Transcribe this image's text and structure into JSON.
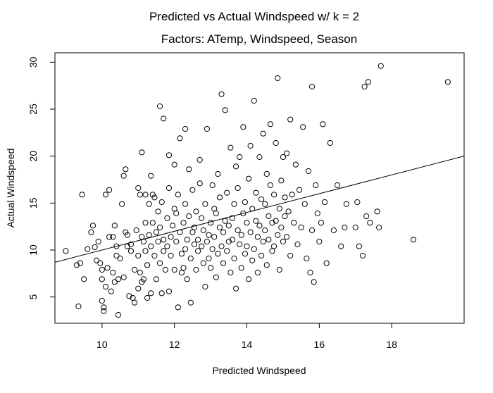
{
  "chart_data": {
    "type": "scatter",
    "title": "Predicted vs Actual Windspeed w/ k = 2",
    "subtitle": "Factors: ATemp, Windspeed, Season",
    "xlabel": "Predicted Windspeed",
    "ylabel": "Actual Windspeed",
    "xlim": [
      8.7,
      20.0
    ],
    "ylim": [
      2.2,
      31.0
    ],
    "x_ticks": [
      10,
      12,
      14,
      16,
      18
    ],
    "y_ticks": [
      5,
      10,
      15,
      20,
      25,
      30
    ],
    "grid": false,
    "legend": "none",
    "regression_line": {
      "x": [
        8.7,
        20.0
      ],
      "y": [
        8.7,
        20.0
      ]
    },
    "points": [
      [
        9.0,
        9.9
      ],
      [
        9.3,
        8.4
      ],
      [
        9.35,
        4.0
      ],
      [
        9.4,
        8.6
      ],
      [
        9.45,
        15.9
      ],
      [
        9.5,
        6.9
      ],
      [
        9.6,
        10.1
      ],
      [
        9.7,
        11.9
      ],
      [
        9.75,
        12.6
      ],
      [
        9.8,
        10.3
      ],
      [
        9.85,
        8.9
      ],
      [
        9.9,
        10.9
      ],
      [
        9.95,
        8.6
      ],
      [
        10.0,
        7.9
      ],
      [
        10.0,
        6.9
      ],
      [
        10.0,
        4.6
      ],
      [
        10.05,
        3.9
      ],
      [
        10.05,
        3.5
      ],
      [
        10.1,
        15.9
      ],
      [
        10.1,
        6.1
      ],
      [
        10.15,
        8.1
      ],
      [
        10.2,
        11.4
      ],
      [
        10.2,
        16.4
      ],
      [
        10.25,
        5.6
      ],
      [
        10.3,
        11.4
      ],
      [
        10.3,
        7.6
      ],
      [
        10.35,
        6.6
      ],
      [
        10.35,
        12.6
      ],
      [
        10.4,
        10.4
      ],
      [
        10.4,
        9.4
      ],
      [
        10.45,
        3.1
      ],
      [
        10.45,
        6.9
      ],
      [
        10.5,
        9.1
      ],
      [
        10.55,
        14.9
      ],
      [
        10.6,
        17.9
      ],
      [
        10.6,
        7.1
      ],
      [
        10.65,
        18.6
      ],
      [
        10.65,
        11.9
      ],
      [
        10.7,
        10.4
      ],
      [
        10.7,
        11.6
      ],
      [
        10.75,
        5.1
      ],
      [
        10.8,
        9.9
      ],
      [
        10.8,
        10.6
      ],
      [
        10.85,
        4.9
      ],
      [
        10.9,
        4.4
      ],
      [
        10.9,
        7.9
      ],
      [
        10.95,
        12.1
      ],
      [
        11.0,
        16.6
      ],
      [
        11.0,
        5.9
      ],
      [
        11.0,
        9.4
      ],
      [
        11.05,
        7.6
      ],
      [
        11.05,
        15.9
      ],
      [
        11.1,
        11.4
      ],
      [
        11.1,
        6.6
      ],
      [
        11.1,
        20.4
      ],
      [
        11.15,
        10.9
      ],
      [
        11.15,
        6.9
      ],
      [
        11.2,
        12.9
      ],
      [
        11.2,
        15.9
      ],
      [
        11.2,
        9.9
      ],
      [
        11.25,
        4.9
      ],
      [
        11.25,
        8.4
      ],
      [
        11.3,
        11.6
      ],
      [
        11.3,
        14.9
      ],
      [
        11.35,
        10.4
      ],
      [
        11.35,
        5.4
      ],
      [
        11.35,
        17.9
      ],
      [
        11.4,
        15.9
      ],
      [
        11.4,
        12.9
      ],
      [
        11.45,
        9.4
      ],
      [
        11.45,
        15.6
      ],
      [
        11.5,
        11.9
      ],
      [
        11.5,
        6.9
      ],
      [
        11.55,
        10.9
      ],
      [
        11.55,
        14.1
      ],
      [
        11.6,
        12.4
      ],
      [
        11.6,
        8.6
      ],
      [
        11.6,
        25.3
      ],
      [
        11.65,
        5.4
      ],
      [
        11.65,
        15.1
      ],
      [
        11.7,
        24.0
      ],
      [
        11.7,
        9.9
      ],
      [
        11.7,
        11.1
      ],
      [
        11.75,
        7.9
      ],
      [
        11.8,
        13.4
      ],
      [
        11.8,
        10.4
      ],
      [
        11.85,
        16.6
      ],
      [
        11.85,
        20.1
      ],
      [
        11.85,
        5.6
      ],
      [
        11.9,
        11.4
      ],
      [
        11.9,
        9.4
      ],
      [
        11.95,
        12.6
      ],
      [
        12.0,
        19.1
      ],
      [
        12.0,
        14.4
      ],
      [
        12.0,
        7.9
      ],
      [
        12.05,
        10.9
      ],
      [
        12.05,
        13.9
      ],
      [
        12.1,
        15.9
      ],
      [
        12.1,
        3.9
      ],
      [
        12.15,
        11.9
      ],
      [
        12.15,
        21.9
      ],
      [
        12.2,
        9.6
      ],
      [
        12.2,
        7.6
      ],
      [
        12.25,
        12.9
      ],
      [
        12.25,
        8.1
      ],
      [
        12.3,
        22.9
      ],
      [
        12.3,
        14.9
      ],
      [
        12.3,
        10.1
      ],
      [
        12.35,
        11.1
      ],
      [
        12.35,
        6.9
      ],
      [
        12.4,
        13.6
      ],
      [
        12.4,
        18.6
      ],
      [
        12.45,
        9.1
      ],
      [
        12.45,
        4.4
      ],
      [
        12.5,
        11.9
      ],
      [
        12.5,
        16.4
      ],
      [
        12.55,
        10.6
      ],
      [
        12.55,
        12.4
      ],
      [
        12.6,
        7.9
      ],
      [
        12.6,
        14.1
      ],
      [
        12.65,
        9.9
      ],
      [
        12.65,
        11.1
      ],
      [
        12.7,
        17.1
      ],
      [
        12.7,
        19.6
      ],
      [
        12.75,
        10.4
      ],
      [
        12.75,
        13.4
      ],
      [
        12.8,
        8.6
      ],
      [
        12.8,
        12.1
      ],
      [
        12.85,
        6.1
      ],
      [
        12.85,
        14.9
      ],
      [
        12.9,
        10.9
      ],
      [
        12.9,
        22.9
      ],
      [
        12.95,
        11.6
      ],
      [
        12.95,
        9.1
      ],
      [
        13.0,
        12.9
      ],
      [
        13.0,
        8.1
      ],
      [
        13.05,
        16.9
      ],
      [
        13.05,
        10.1
      ],
      [
        13.1,
        14.4
      ],
      [
        13.1,
        11.4
      ],
      [
        13.15,
        7.1
      ],
      [
        13.15,
        13.9
      ],
      [
        13.2,
        9.6
      ],
      [
        13.2,
        18.1
      ],
      [
        13.25,
        12.4
      ],
      [
        13.25,
        15.6
      ],
      [
        13.3,
        10.4
      ],
      [
        13.3,
        26.6
      ],
      [
        13.35,
        8.6
      ],
      [
        13.35,
        11.9
      ],
      [
        13.4,
        13.1
      ],
      [
        13.4,
        24.9
      ],
      [
        13.45,
        9.9
      ],
      [
        13.45,
        16.1
      ],
      [
        13.5,
        10.9
      ],
      [
        13.5,
        12.6
      ],
      [
        13.55,
        7.6
      ],
      [
        13.55,
        20.9
      ],
      [
        13.6,
        13.4
      ],
      [
        13.6,
        11.1
      ],
      [
        13.65,
        14.9
      ],
      [
        13.65,
        9.1
      ],
      [
        13.7,
        18.9
      ],
      [
        13.7,
        5.9
      ],
      [
        13.75,
        12.1
      ],
      [
        13.75,
        16.6
      ],
      [
        13.8,
        10.6
      ],
      [
        13.8,
        19.9
      ],
      [
        13.85,
        11.6
      ],
      [
        13.85,
        8.1
      ],
      [
        13.9,
        13.9
      ],
      [
        13.9,
        23.1
      ],
      [
        13.95,
        9.6
      ],
      [
        13.95,
        15.1
      ],
      [
        14.0,
        12.9
      ],
      [
        14.0,
        10.4
      ],
      [
        14.05,
        6.9
      ],
      [
        14.05,
        17.6
      ],
      [
        14.1,
        11.9
      ],
      [
        14.1,
        21.1
      ],
      [
        14.15,
        14.4
      ],
      [
        14.15,
        8.9
      ],
      [
        14.2,
        10.1
      ],
      [
        14.2,
        25.9
      ],
      [
        14.25,
        13.1
      ],
      [
        14.25,
        16.1
      ],
      [
        14.3,
        11.4
      ],
      [
        14.3,
        7.6
      ],
      [
        14.35,
        19.9
      ],
      [
        14.35,
        12.6
      ],
      [
        14.4,
        9.4
      ],
      [
        14.4,
        15.4
      ],
      [
        14.45,
        22.4
      ],
      [
        14.45,
        10.9
      ],
      [
        14.5,
        12.1
      ],
      [
        14.5,
        14.9
      ],
      [
        14.55,
        8.4
      ],
      [
        14.55,
        18.1
      ],
      [
        14.6,
        13.6
      ],
      [
        14.6,
        11.1
      ],
      [
        14.65,
        16.9
      ],
      [
        14.65,
        23.4
      ],
      [
        14.7,
        9.9
      ],
      [
        14.7,
        12.9
      ],
      [
        14.75,
        15.9
      ],
      [
        14.75,
        10.4
      ],
      [
        14.8,
        21.4
      ],
      [
        14.8,
        13.1
      ],
      [
        14.85,
        11.6
      ],
      [
        14.85,
        28.3
      ],
      [
        14.9,
        14.4
      ],
      [
        14.9,
        7.9
      ],
      [
        14.95,
        17.4
      ],
      [
        14.95,
        12.4
      ],
      [
        15.0,
        10.9
      ],
      [
        15.0,
        19.9
      ],
      [
        15.05,
        15.6
      ],
      [
        15.05,
        13.6
      ],
      [
        15.1,
        20.3
      ],
      [
        15.1,
        11.4
      ],
      [
        15.15,
        14.1
      ],
      [
        15.2,
        23.9
      ],
      [
        15.2,
        9.4
      ],
      [
        15.25,
        15.9
      ],
      [
        15.3,
        12.9
      ],
      [
        15.35,
        19.1
      ],
      [
        15.4,
        10.6
      ],
      [
        15.45,
        16.4
      ],
      [
        15.5,
        12.4
      ],
      [
        15.55,
        23.1
      ],
      [
        15.6,
        14.9
      ],
      [
        15.65,
        9.1
      ],
      [
        15.7,
        18.4
      ],
      [
        15.75,
        7.6
      ],
      [
        15.8,
        12.1
      ],
      [
        15.8,
        27.4
      ],
      [
        15.85,
        6.6
      ],
      [
        15.9,
        16.9
      ],
      [
        15.95,
        13.9
      ],
      [
        16.0,
        10.9
      ],
      [
        16.05,
        12.9
      ],
      [
        16.1,
        23.4
      ],
      [
        16.15,
        15.1
      ],
      [
        16.2,
        8.6
      ],
      [
        16.3,
        21.4
      ],
      [
        16.4,
        12.1
      ],
      [
        16.5,
        16.9
      ],
      [
        16.6,
        10.4
      ],
      [
        16.7,
        12.4
      ],
      [
        16.75,
        14.9
      ],
      [
        17.0,
        12.4
      ],
      [
        17.05,
        15.1
      ],
      [
        17.1,
        10.4
      ],
      [
        17.2,
        9.4
      ],
      [
        17.25,
        27.4
      ],
      [
        17.3,
        13.6
      ],
      [
        17.35,
        27.9
      ],
      [
        17.4,
        12.9
      ],
      [
        17.6,
        14.1
      ],
      [
        17.65,
        12.4
      ],
      [
        17.7,
        29.6
      ],
      [
        18.6,
        11.1
      ],
      [
        19.55,
        27.9
      ]
    ]
  }
}
